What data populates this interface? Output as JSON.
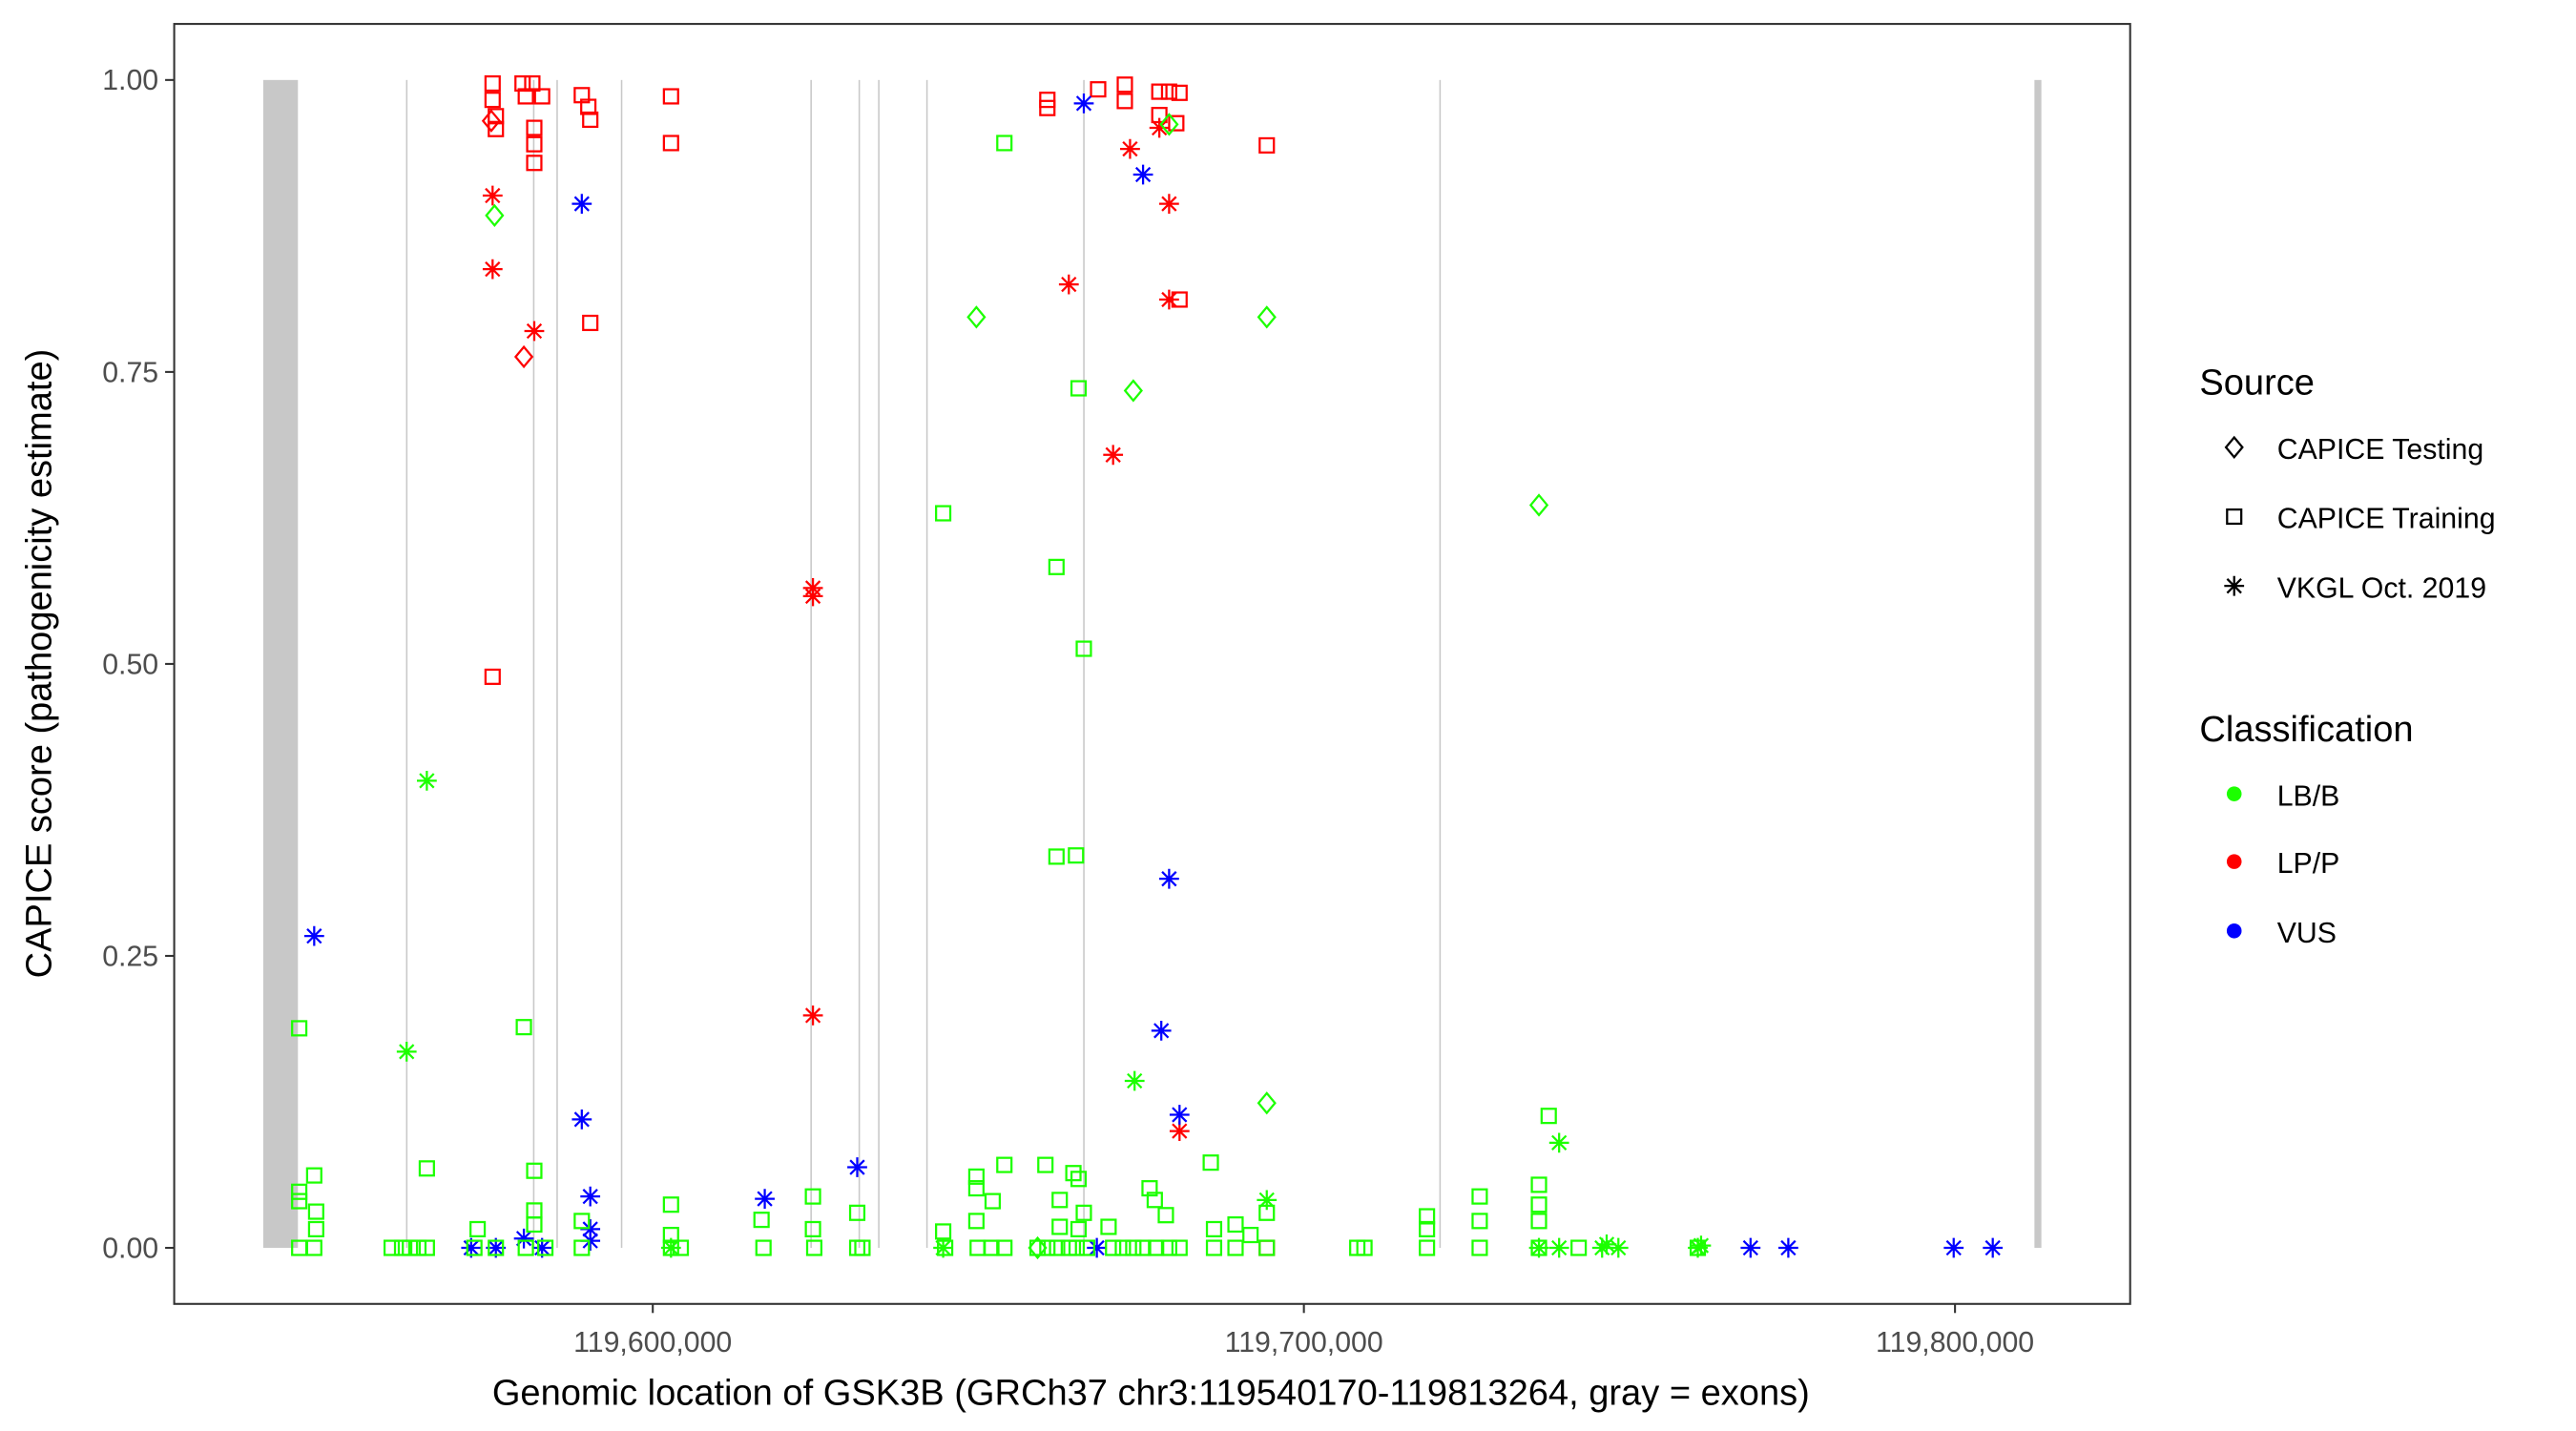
{
  "chart_data": {
    "type": "scatter",
    "xlabel": "Genomic location of GSK3B (GRCh37 chr3:119540170-119813264, gray = exons)",
    "ylabel": "CAPICE score (pathogenicity estimate)",
    "xlim": [
      119526500,
      119826900
    ],
    "ylim": [
      -0.048,
      1.048
    ],
    "x_ticks": [
      119600000,
      119700000,
      119800000
    ],
    "x_tick_labels": [
      "119,600,000",
      "119,700,000",
      "119,800,000"
    ],
    "y_ticks": [
      0,
      0.25,
      0.5,
      0.75,
      1.0
    ],
    "y_tick_labels": [
      "0.00",
      "0.25",
      "0.50",
      "0.75",
      "1.00"
    ],
    "grid": false,
    "exon_color": "#c8c8c8",
    "exons": [
      [
        119540170,
        119545500
      ],
      [
        119562100,
        119562300
      ],
      [
        119581600,
        119581800
      ],
      [
        119585200,
        119585400
      ],
      [
        119595100,
        119595300
      ],
      [
        119624200,
        119624400
      ],
      [
        119631600,
        119631800
      ],
      [
        119634600,
        119634800
      ],
      [
        119642000,
        119642200
      ],
      [
        119666100,
        119666300
      ],
      [
        119720800,
        119721000
      ],
      [
        119812200,
        119813264
      ]
    ],
    "legend": {
      "placement": "right",
      "source_title": "Source",
      "source_items": [
        {
          "key": "Testing",
          "label": "CAPICE Testing",
          "shape": "diamond"
        },
        {
          "key": "Training",
          "label": "CAPICE Training",
          "shape": "square"
        },
        {
          "key": "VKGL",
          "label": "VKGL Oct. 2019",
          "shape": "asterisk"
        }
      ],
      "class_title": "Classification",
      "class_items": [
        {
          "key": "LB/B",
          "label": "LB/B",
          "color": "#1cff00"
        },
        {
          "key": "LP/P",
          "label": "LP/P",
          "color": "#ff0000"
        },
        {
          "key": "VUS",
          "label": "VUS",
          "color": "#0000ff"
        }
      ]
    },
    "series": [
      {
        "source": "Training",
        "classification": "LP/P",
        "points": [
          [
            119575400,
            0.997
          ],
          [
            119575400,
            0.983
          ],
          [
            119575900,
            0.969
          ],
          [
            119575900,
            0.958
          ],
          [
            119580000,
            0.997
          ],
          [
            119580500,
            0.986
          ],
          [
            119581500,
            0.997
          ],
          [
            119583000,
            0.986
          ],
          [
            119581800,
            0.959
          ],
          [
            119581800,
            0.945
          ],
          [
            119581800,
            0.929
          ],
          [
            119589100,
            0.987
          ],
          [
            119590100,
            0.977
          ],
          [
            119590400,
            0.966
          ],
          [
            119590400,
            0.792
          ],
          [
            119575400,
            0.489
          ],
          [
            119602800,
            0.986
          ],
          [
            119602800,
            0.946
          ],
          [
            119660600,
            0.983
          ],
          [
            119660600,
            0.976
          ],
          [
            119668400,
            0.992
          ],
          [
            119672500,
            0.996
          ],
          [
            119672500,
            0.982
          ],
          [
            119677800,
            0.99
          ],
          [
            119679300,
            0.99
          ],
          [
            119680900,
            0.989
          ],
          [
            119677800,
            0.97
          ],
          [
            119680400,
            0.963
          ],
          [
            119680900,
            0.812
          ],
          [
            119694300,
            0.944
          ],
          [
            119694300,
            0.0
          ]
        ]
      },
      {
        "source": "Testing",
        "classification": "LP/P",
        "points": [
          [
            119575200,
            0.965
          ],
          [
            119580200,
            0.763
          ]
        ]
      },
      {
        "source": "VKGL",
        "classification": "LP/P",
        "points": [
          [
            119575400,
            0.901
          ],
          [
            119575400,
            0.838
          ],
          [
            119581800,
            0.785
          ],
          [
            119624600,
            0.565
          ],
          [
            119624600,
            0.558
          ],
          [
            119624600,
            0.199
          ],
          [
            119663900,
            0.825
          ],
          [
            119673300,
            0.941
          ],
          [
            119670700,
            0.679
          ],
          [
            119677800,
            0.959
          ],
          [
            119679300,
            0.894
          ],
          [
            119679300,
            0.812
          ],
          [
            119680900,
            0.1
          ]
        ]
      },
      {
        "source": "VKGL",
        "classification": "VUS",
        "points": [
          [
            119589100,
            0.894
          ],
          [
            119666200,
            0.98
          ],
          [
            119675300,
            0.919
          ],
          [
            119679300,
            0.316
          ],
          [
            119678100,
            0.186
          ],
          [
            119680900,
            0.114
          ],
          [
            119548000,
            0.267
          ],
          [
            119589100,
            0.11
          ],
          [
            119590400,
            0.044
          ],
          [
            119617200,
            0.042
          ],
          [
            119631400,
            0.069
          ],
          [
            119590400,
            0.016
          ],
          [
            119590400,
            0.006
          ],
          [
            119580200,
            0.008
          ],
          [
            119572100,
            0.0
          ],
          [
            119575900,
            0.0
          ],
          [
            119583000,
            0.0
          ],
          [
            119668200,
            0.0
          ],
          [
            119768600,
            0.0
          ],
          [
            119774400,
            0.0
          ],
          [
            119799800,
            0.0
          ],
          [
            119805800,
            0.0
          ]
        ]
      },
      {
        "source": "Testing",
        "classification": "LB/B",
        "points": [
          [
            119575700,
            0.884
          ],
          [
            119649700,
            0.797
          ],
          [
            119694300,
            0.797
          ],
          [
            119673800,
            0.734
          ],
          [
            119736100,
            0.636
          ],
          [
            119694300,
            0.124
          ],
          [
            119679300,
            0.962
          ],
          [
            119659100,
            0.0
          ]
        ]
      },
      {
        "source": "VKGL",
        "classification": "LB/B",
        "points": [
          [
            119565300,
            0.4
          ],
          [
            119562200,
            0.168
          ],
          [
            119674000,
            0.143
          ],
          [
            119739200,
            0.09
          ],
          [
            119694300,
            0.041
          ],
          [
            119602800,
            0.0
          ],
          [
            119644600,
            0.0
          ],
          [
            119739200,
            0.0
          ],
          [
            119745800,
            0.0
          ],
          [
            119748300,
            0.0
          ],
          [
            119760500,
            0.0
          ],
          [
            119736100,
            0.0
          ],
          [
            119746500,
            0.003
          ],
          [
            119761000,
            0.002
          ]
        ]
      },
      {
        "source": "Training",
        "classification": "LB/B",
        "points": [
          [
            119545700,
            0.188
          ],
          [
            119580200,
            0.189
          ],
          [
            119654000,
            0.946
          ],
          [
            119665400,
            0.736
          ],
          [
            119644600,
            0.629
          ],
          [
            119662000,
            0.583
          ],
          [
            119666200,
            0.513
          ],
          [
            119662000,
            0.335
          ],
          [
            119665000,
            0.336
          ],
          [
            119737600,
            0.113
          ],
          [
            119565300,
            0.068
          ],
          [
            119548000,
            0.062
          ],
          [
            119545700,
            0.048
          ],
          [
            119545700,
            0.04
          ],
          [
            119548300,
            0.031
          ],
          [
            119548300,
            0.016
          ],
          [
            119581800,
            0.066
          ],
          [
            119581800,
            0.032
          ],
          [
            119581800,
            0.02
          ],
          [
            119573100,
            0.016
          ],
          [
            119589100,
            0.023
          ],
          [
            119602800,
            0.037
          ],
          [
            119602800,
            0.011
          ],
          [
            119616700,
            0.024
          ],
          [
            119624600,
            0.044
          ],
          [
            119624600,
            0.016
          ],
          [
            119631400,
            0.03
          ],
          [
            119644600,
            0.014
          ],
          [
            119649700,
            0.061
          ],
          [
            119649700,
            0.051
          ],
          [
            119654000,
            0.071
          ],
          [
            119652200,
            0.04
          ],
          [
            119649700,
            0.023
          ],
          [
            119660300,
            0.071
          ],
          [
            119664600,
            0.064
          ],
          [
            119665400,
            0.059
          ],
          [
            119662500,
            0.041
          ],
          [
            119662500,
            0.018
          ],
          [
            119666200,
            0.03
          ],
          [
            119665400,
            0.016
          ],
          [
            119670000,
            0.018
          ],
          [
            119676300,
            0.051
          ],
          [
            119677100,
            0.041
          ],
          [
            119678800,
            0.028
          ],
          [
            119685700,
            0.073
          ],
          [
            119686200,
            0.016
          ],
          [
            119689500,
            0.02
          ],
          [
            119691800,
            0.011
          ],
          [
            119694300,
            0.03
          ],
          [
            119718900,
            0.027
          ],
          [
            119718900,
            0.016
          ],
          [
            119727000,
            0.044
          ],
          [
            119727000,
            0.023
          ],
          [
            119736100,
            0.054
          ],
          [
            119736100,
            0.037
          ],
          [
            119736100,
            0.023
          ],
          [
            119545700,
            0.0
          ],
          [
            119548000,
            0.0
          ],
          [
            119559900,
            0.0
          ],
          [
            119561500,
            0.0
          ],
          [
            119562700,
            0.0
          ],
          [
            119564000,
            0.0
          ],
          [
            119565300,
            0.0
          ],
          [
            119572600,
            0.0
          ],
          [
            119575900,
            0.0
          ],
          [
            119580500,
            0.0
          ],
          [
            119583500,
            0.0
          ],
          [
            119589100,
            0.0
          ],
          [
            119602800,
            0.0
          ],
          [
            119604300,
            0.0
          ],
          [
            119617000,
            0.0
          ],
          [
            119624800,
            0.0
          ],
          [
            119631400,
            0.0
          ],
          [
            119632200,
            0.0
          ],
          [
            119644900,
            0.0
          ],
          [
            119649900,
            0.0
          ],
          [
            119652000,
            0.0
          ],
          [
            119654000,
            0.0
          ],
          [
            119659100,
            0.0
          ],
          [
            119660600,
            0.0
          ],
          [
            119662100,
            0.0
          ],
          [
            119663900,
            0.0
          ],
          [
            119665100,
            0.0
          ],
          [
            119666700,
            0.0
          ],
          [
            119670700,
            0.0
          ],
          [
            119672200,
            0.0
          ],
          [
            119673800,
            0.0
          ],
          [
            119675300,
            0.0
          ],
          [
            119677300,
            0.0
          ],
          [
            119679300,
            0.0
          ],
          [
            119680900,
            0.0
          ],
          [
            119686200,
            0.0
          ],
          [
            119689500,
            0.0
          ],
          [
            119694300,
            0.0
          ],
          [
            119708200,
            0.0
          ],
          [
            119709300,
            0.0
          ],
          [
            119718900,
            0.0
          ],
          [
            119727000,
            0.0
          ],
          [
            119736100,
            0.0
          ],
          [
            119742200,
            0.0
          ],
          [
            119760500,
            0.0
          ]
        ]
      }
    ]
  }
}
